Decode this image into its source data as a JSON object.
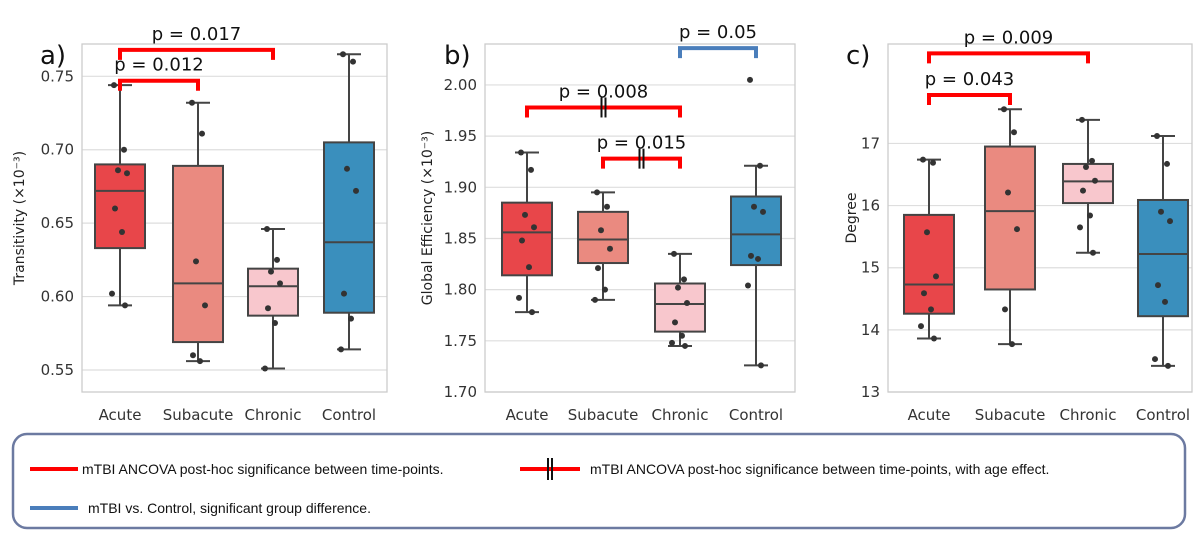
{
  "legend": {
    "items": [
      {
        "kind": "red",
        "label": "mTBI ANCOVA post-hoc significance between time-points.",
        "color": "#ff0000"
      },
      {
        "kind": "red-age",
        "label": "mTBI ANCOVA post-hoc significance between time-points, with age effect.",
        "color": "#ff0000"
      },
      {
        "kind": "blue",
        "label": "mTBI vs. Control, significant group difference.",
        "color": "#4a7ebb"
      }
    ]
  },
  "chart_data": [
    {
      "type": "box",
      "panel_label": "a)",
      "ylabel": "Transitivity (×10⁻³)",
      "ylim": [
        0.535,
        0.772
      ],
      "yticks": [
        0.55,
        0.6,
        0.65,
        0.7,
        0.75
      ],
      "tick_decimals": 2,
      "grid": true,
      "categories": [
        "Acute",
        "Subacute",
        "Chronic",
        "Control"
      ],
      "colors": [
        "#e8464a",
        "#ea8a80",
        "#f8c7cd",
        "#3a8fbd"
      ],
      "boxes": [
        {
          "whisker_low": 0.594,
          "q1": 0.633,
          "median": 0.672,
          "q3": 0.69,
          "whisker_high": 0.744
        },
        {
          "whisker_low": 0.556,
          "q1": 0.569,
          "median": 0.609,
          "q3": 0.689,
          "whisker_high": 0.732
        },
        {
          "whisker_low": 0.551,
          "q1": 0.587,
          "median": 0.607,
          "q3": 0.619,
          "whisker_high": 0.646
        },
        {
          "whisker_low": 0.564,
          "q1": 0.589,
          "median": 0.637,
          "q3": 0.705,
          "whisker_high": 0.765
        }
      ],
      "points": [
        [
          0.744,
          0.7,
          0.686,
          0.684,
          0.66,
          0.644,
          0.602,
          0.594
        ],
        [
          0.732,
          0.711,
          0.624,
          0.594,
          0.56,
          0.556
        ],
        [
          0.646,
          0.625,
          0.617,
          0.609,
          0.592,
          0.582,
          0.551
        ],
        [
          0.765,
          0.76,
          0.687,
          0.672,
          0.602,
          0.585,
          0.564
        ]
      ],
      "annotations": [
        {
          "from": 0,
          "to": 1,
          "y": 0.747,
          "text": "p = 0.012",
          "color": "red",
          "age_effect": false
        },
        {
          "from": 0,
          "to": 2,
          "y": 0.768,
          "text": "p = 0.017",
          "color": "red",
          "age_effect": false
        }
      ]
    },
    {
      "type": "box",
      "panel_label": "b)",
      "ylabel": "Global Efficiency (×10⁻³)",
      "ylim": [
        1.7,
        2.04
      ],
      "yticks": [
        1.7,
        1.75,
        1.8,
        1.85,
        1.9,
        1.95,
        2.0
      ],
      "tick_decimals": 2,
      "grid": true,
      "categories": [
        "Acute",
        "Subacute",
        "Chronic",
        "Control"
      ],
      "colors": [
        "#e8464a",
        "#ea8a80",
        "#f8c7cd",
        "#3a8fbd"
      ],
      "boxes": [
        {
          "whisker_low": 1.778,
          "q1": 1.814,
          "median": 1.856,
          "q3": 1.885,
          "whisker_high": 1.934
        },
        {
          "whisker_low": 1.79,
          "q1": 1.826,
          "median": 1.849,
          "q3": 1.876,
          "whisker_high": 1.895
        },
        {
          "whisker_low": 1.745,
          "q1": 1.759,
          "median": 1.786,
          "q3": 1.806,
          "whisker_high": 1.835
        },
        {
          "whisker_low": 1.726,
          "q1": 1.824,
          "median": 1.854,
          "q3": 1.891,
          "whisker_high": 1.921
        }
      ],
      "points": [
        [
          1.934,
          1.917,
          1.873,
          1.861,
          1.848,
          1.822,
          1.792,
          1.778
        ],
        [
          1.895,
          1.881,
          1.858,
          1.84,
          1.821,
          1.8,
          1.79
        ],
        [
          1.835,
          1.81,
          1.802,
          1.787,
          1.768,
          1.755,
          1.748,
          1.745
        ],
        [
          2.005,
          1.921,
          1.881,
          1.876,
          1.833,
          1.83,
          1.804,
          1.726
        ]
      ],
      "annotations": [
        {
          "from": 0,
          "to": 2,
          "y": 1.978,
          "text": "p = 0.008",
          "color": "red",
          "age_effect": true
        },
        {
          "from": 1,
          "to": 2,
          "y": 1.928,
          "text": "p = 0.015",
          "color": "red",
          "age_effect": true
        },
        {
          "from": 2,
          "to": 3,
          "y": 2.036,
          "text": "p = 0.05",
          "color": "blue",
          "age_effect": false
        }
      ]
    },
    {
      "type": "box",
      "panel_label": "c)",
      "ylabel": "Degree",
      "ylim": [
        13.0,
        18.6
      ],
      "yticks": [
        13,
        14,
        15,
        16,
        17
      ],
      "tick_decimals": 0,
      "grid": true,
      "categories": [
        "Acute",
        "Subacute",
        "Chronic",
        "Control"
      ],
      "colors": [
        "#e8464a",
        "#ea8a80",
        "#f8c7cd",
        "#3a8fbd"
      ],
      "boxes": [
        {
          "whisker_low": 13.86,
          "q1": 14.26,
          "median": 14.73,
          "q3": 15.85,
          "whisker_high": 16.74
        },
        {
          "whisker_low": 13.77,
          "q1": 14.65,
          "median": 15.91,
          "q3": 16.95,
          "whisker_high": 17.55
        },
        {
          "whisker_low": 15.24,
          "q1": 16.04,
          "median": 16.39,
          "q3": 16.67,
          "whisker_high": 17.38
        },
        {
          "whisker_low": 13.42,
          "q1": 14.22,
          "median": 15.22,
          "q3": 16.09,
          "whisker_high": 17.12
        }
      ],
      "points": [
        [
          16.74,
          16.69,
          15.57,
          14.86,
          14.59,
          14.33,
          14.06,
          13.86
        ],
        [
          17.55,
          17.18,
          16.21,
          15.62,
          14.33,
          13.77
        ],
        [
          17.38,
          16.72,
          16.62,
          16.4,
          16.24,
          15.84,
          15.65,
          15.24
        ],
        [
          17.12,
          16.67,
          15.9,
          15.75,
          14.72,
          14.45,
          13.53,
          13.42
        ]
      ],
      "annotations": [
        {
          "from": 0,
          "to": 1,
          "y": 17.78,
          "text": "p = 0.043",
          "color": "red",
          "age_effect": false
        },
        {
          "from": 0,
          "to": 2,
          "y": 18.45,
          "text": "p = 0.009",
          "color": "red",
          "age_effect": false
        }
      ]
    }
  ]
}
